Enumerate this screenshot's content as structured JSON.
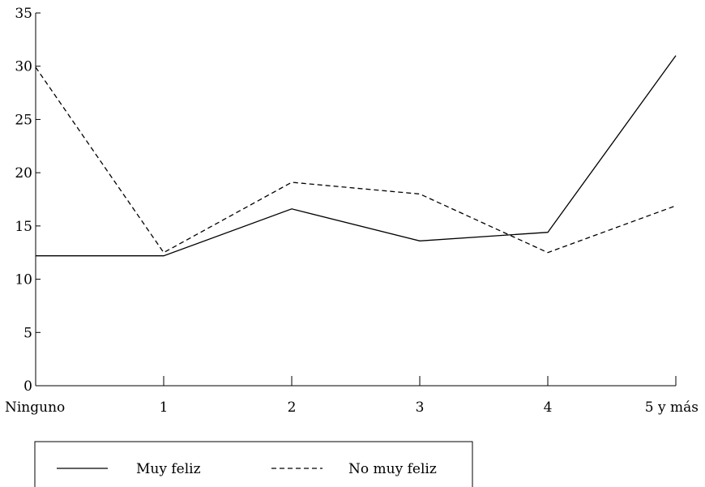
{
  "chart_data": {
    "type": "line",
    "categories": [
      "Ninguno",
      "1",
      "2",
      "3",
      "4",
      "5 y más"
    ],
    "series": [
      {
        "name": "Muy feliz",
        "style": "solid",
        "values": [
          12.2,
          12.2,
          16.6,
          13.6,
          14.4,
          31.0
        ]
      },
      {
        "name": "No muy feliz",
        "style": "dashed",
        "values": [
          29.9,
          12.5,
          19.1,
          18.0,
          12.5,
          16.9
        ]
      }
    ],
    "ylim": [
      0,
      35
    ],
    "yticks": [
      0,
      5,
      10,
      15,
      20,
      25,
      30,
      35
    ],
    "title": "",
    "xlabel": "",
    "ylabel": "",
    "grid": false,
    "legend_position": "bottom-left",
    "line_color": "#000000"
  }
}
